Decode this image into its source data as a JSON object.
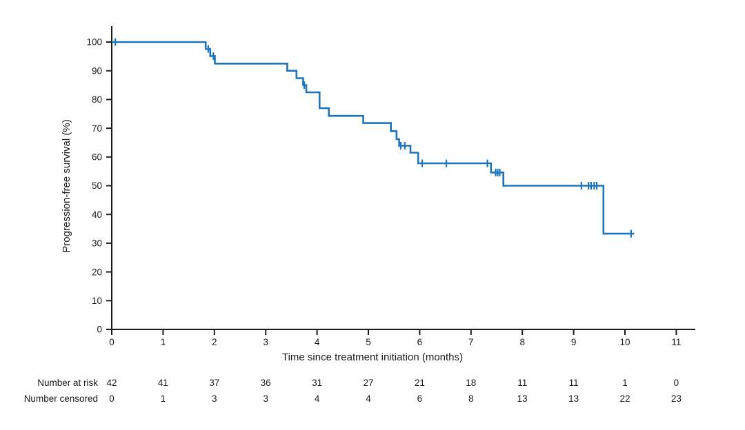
{
  "chart_data": {
    "type": "line",
    "subtype": "kaplan-meier-step-curve",
    "title": "",
    "xlabel": "Time since treatment initiation (months)",
    "ylabel": "Progression-free survival (%)",
    "xlim": [
      0,
      11.4
    ],
    "ylim": [
      0,
      100
    ],
    "x_ticks": [
      0,
      1,
      2,
      3,
      4,
      5,
      6,
      7,
      8,
      9,
      10,
      11
    ],
    "y_ticks": [
      0,
      10,
      20,
      30,
      40,
      50,
      60,
      70,
      80,
      90,
      100
    ],
    "grid": "off",
    "legend": "none",
    "colors": {
      "curve": "#1c75bc",
      "axis": "#1a1a1a",
      "text": "#1a1a1a",
      "background": "#ffffff"
    },
    "series_name": "Progression-free survival",
    "steps": [
      [
        0.0,
        100.0
      ],
      [
        1.83,
        97.6
      ],
      [
        1.92,
        95.1
      ],
      [
        2.01,
        92.5
      ],
      [
        3.42,
        90.0
      ],
      [
        3.6,
        87.4
      ],
      [
        3.73,
        85.0
      ],
      [
        3.79,
        82.5
      ],
      [
        4.05,
        77.0
      ],
      [
        4.23,
        74.3
      ],
      [
        4.9,
        71.8
      ],
      [
        5.44,
        69.0
      ],
      [
        5.55,
        66.2
      ],
      [
        5.6,
        63.9
      ],
      [
        5.82,
        61.5
      ],
      [
        5.97,
        57.8
      ],
      [
        7.39,
        54.6
      ],
      [
        7.63,
        50.0
      ],
      [
        9.58,
        33.3
      ]
    ],
    "end_time": 10.18,
    "censor_marks": [
      [
        0.07,
        100.0
      ],
      [
        1.88,
        97.6
      ],
      [
        1.98,
        95.1
      ],
      [
        3.75,
        85.0
      ],
      [
        5.63,
        63.9
      ],
      [
        5.71,
        63.9
      ],
      [
        6.05,
        57.8
      ],
      [
        6.52,
        57.8
      ],
      [
        7.32,
        57.8
      ],
      [
        7.48,
        54.6
      ],
      [
        7.52,
        54.6
      ],
      [
        7.56,
        54.6
      ],
      [
        9.15,
        50.0
      ],
      [
        9.29,
        50.0
      ],
      [
        9.34,
        50.0
      ],
      [
        9.4,
        50.0
      ],
      [
        9.45,
        50.0
      ],
      [
        10.12,
        33.3
      ]
    ],
    "risk_table": {
      "time_points": [
        0,
        1,
        2,
        3,
        4,
        5,
        6,
        7,
        8,
        9,
        10,
        11
      ],
      "rows": [
        {
          "label": "Number at risk",
          "values": [
            42,
            41,
            37,
            36,
            31,
            27,
            21,
            18,
            11,
            11,
            1,
            0
          ]
        },
        {
          "label": "Number censored",
          "values": [
            0,
            1,
            3,
            3,
            4,
            4,
            6,
            8,
            13,
            13,
            22,
            23
          ]
        }
      ]
    }
  }
}
